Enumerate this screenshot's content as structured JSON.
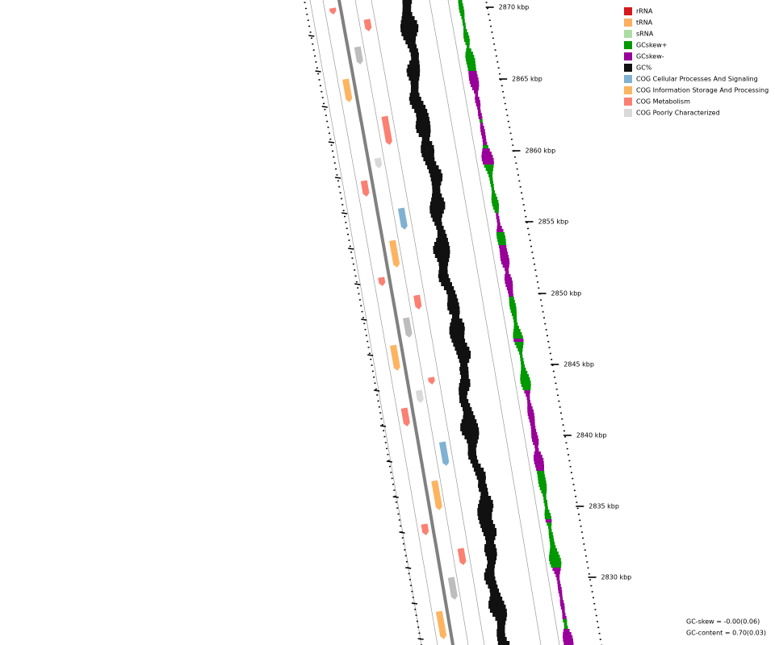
{
  "map": {
    "ticks": [
      "2870 kbp",
      "2865 kbp",
      "2860 kbp",
      "2855 kbp",
      "2850 kbp",
      "2845 kbp",
      "2840 kbp",
      "2835 kbp",
      "2830 kbp"
    ],
    "legend": [
      {
        "name": "rRNA",
        "color": "#d7191c"
      },
      {
        "name": "tRNA",
        "color": "#fdae61"
      },
      {
        "name": "sRNA",
        "color": "#abdda4"
      },
      {
        "name": "GCskew+",
        "color": "#009900"
      },
      {
        "name": "GCskew-",
        "color": "#990099"
      },
      {
        "name": "GC%",
        "color": "#111111"
      },
      {
        "name": "COG Cellular Processes And Signaling",
        "color": "#80b1d3"
      },
      {
        "name": "COG Information Storage And Processing",
        "color": "#fdb462"
      },
      {
        "name": "COG Metabolism",
        "color": "#fb8072"
      },
      {
        "name": "COG Poorly Characterized",
        "color": "#d9d9d9"
      }
    ],
    "stats": [
      "GC-skew = -0.00(0.06)",
      "GC-content = 0.70(0.03)"
    ]
  }
}
